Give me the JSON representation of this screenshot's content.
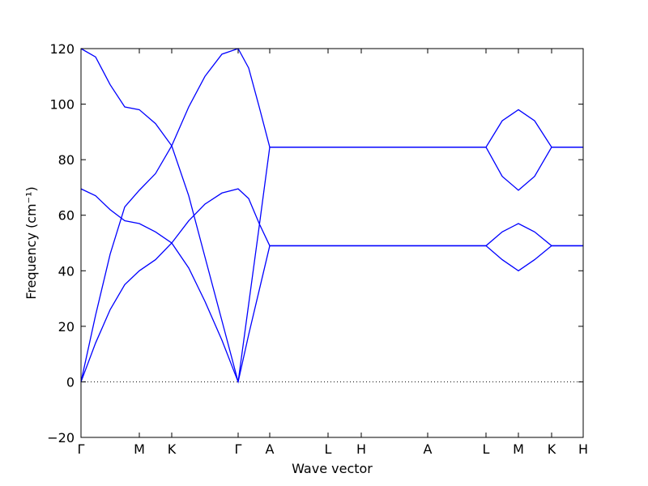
{
  "chart_data": {
    "type": "line",
    "x_label": "Wave vector",
    "y_label": "Frequency (cm⁻¹)",
    "color": "#0000ff",
    "hline": 0,
    "x": [
      0,
      0.18,
      0.36,
      0.54,
      0.72,
      0.92,
      1.12,
      1.33,
      1.53,
      1.74,
      1.94,
      2.07,
      2.2,
      2.33,
      3.05,
      3.46,
      4.28,
      5.0,
      5.2,
      5.4,
      5.6,
      5.81,
      6.2
    ],
    "series": [
      {
        "values": [
          0,
          14,
          26,
          35,
          40,
          44,
          50,
          58,
          64,
          68,
          69.5,
          66,
          57,
          49,
          49,
          49,
          49,
          49,
          44,
          40,
          44,
          49,
          49
        ]
      },
      {
        "values": [
          69.5,
          67,
          62,
          58,
          57,
          54,
          50,
          41,
          29,
          15,
          0,
          17,
          33,
          49,
          49,
          49,
          49,
          49,
          54,
          57,
          54,
          49,
          49
        ]
      },
      {
        "values": [
          0,
          24,
          46,
          63,
          69,
          75,
          85,
          99,
          110,
          118,
          120,
          113,
          99,
          84.5,
          84.5,
          84.5,
          84.5,
          84.5,
          74,
          69,
          74,
          84.5,
          84.5
        ]
      },
      {
        "values": [
          120,
          117,
          107,
          99,
          98,
          93,
          85,
          67,
          45,
          22,
          0,
          28,
          56,
          84.5,
          84.5,
          84.5,
          84.5,
          84.5,
          94,
          98,
          94,
          84.5,
          84.5
        ]
      }
    ],
    "xlim": [
      0,
      6.2
    ],
    "xticks": [
      {
        "value": 0,
        "label": "Γ"
      },
      {
        "value": 0.72,
        "label": "M"
      },
      {
        "value": 1.12,
        "label": "K"
      },
      {
        "value": 1.94,
        "label": "Γ"
      },
      {
        "value": 2.33,
        "label": "A"
      },
      {
        "value": 3.05,
        "label": "L"
      },
      {
        "value": 3.46,
        "label": "H"
      },
      {
        "value": 4.28,
        "label": "A"
      },
      {
        "value": 5.0,
        "label": "L"
      },
      {
        "value": 5.4,
        "label": "M"
      },
      {
        "value": 5.81,
        "label": "K"
      },
      {
        "value": 6.2,
        "label": "H"
      }
    ],
    "ylim": [
      -20,
      120
    ],
    "yticks": [
      {
        "value": -20,
        "label": "−20"
      },
      0,
      20,
      40,
      60,
      80,
      100,
      120
    ]
  }
}
